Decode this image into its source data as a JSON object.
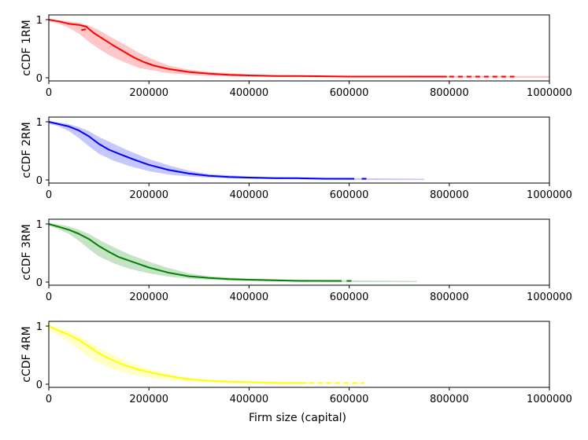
{
  "chart_data": {
    "type": "line",
    "xlabel": "Firm size (capital)",
    "xlim": [
      0,
      1000000
    ],
    "ylim": [
      0,
      1
    ],
    "xticks": [
      "0",
      "200000",
      "400000",
      "600000",
      "800000",
      "1000000"
    ],
    "yticks": [
      "0",
      "1"
    ],
    "panels": [
      {
        "ylabel": "cCDF 1RM",
        "color": "#ff0000",
        "solid_points": [
          [
            0,
            1.0
          ],
          [
            20000,
            0.97
          ],
          [
            40000,
            0.93
          ],
          [
            60000,
            0.91
          ],
          [
            75000,
            0.88
          ],
          [
            80000,
            0.84
          ],
          [
            90000,
            0.77
          ],
          [
            110000,
            0.66
          ],
          [
            130000,
            0.55
          ],
          [
            150000,
            0.45
          ],
          [
            170000,
            0.35
          ],
          [
            190000,
            0.27
          ],
          [
            210000,
            0.21
          ],
          [
            240000,
            0.15
          ],
          [
            280000,
            0.1
          ],
          [
            320000,
            0.07
          ],
          [
            360000,
            0.05
          ],
          [
            400000,
            0.04
          ],
          [
            450000,
            0.03
          ],
          [
            500000,
            0.03
          ],
          [
            600000,
            0.02
          ],
          [
            700000,
            0.02
          ],
          [
            795000,
            0.02
          ]
        ],
        "dashed_segments": [
          [
            [
              65000,
              0.82
            ],
            [
              78000,
              0.84
            ]
          ],
          [
            [
              800000,
              0.02
            ],
            [
              930000,
              0.02
            ]
          ]
        ],
        "band_upper": [
          [
            0,
            1.0
          ],
          [
            20000,
            0.99
          ],
          [
            40000,
            0.97
          ],
          [
            60000,
            0.95
          ],
          [
            80000,
            0.9
          ],
          [
            100000,
            0.82
          ],
          [
            120000,
            0.72
          ],
          [
            150000,
            0.58
          ],
          [
            180000,
            0.43
          ],
          [
            210000,
            0.31
          ],
          [
            240000,
            0.21
          ],
          [
            280000,
            0.14
          ],
          [
            320000,
            0.1
          ],
          [
            400000,
            0.06
          ],
          [
            500000,
            0.04
          ],
          [
            600000,
            0.03
          ],
          [
            800000,
            0.03
          ],
          [
            1000000,
            0.03
          ]
        ],
        "band_lower": [
          [
            1000000,
            0.0
          ],
          [
            800000,
            0.0
          ],
          [
            600000,
            0.01
          ],
          [
            500000,
            0.01
          ],
          [
            400000,
            0.02
          ],
          [
            320000,
            0.03
          ],
          [
            280000,
            0.05
          ],
          [
            240000,
            0.08
          ],
          [
            210000,
            0.12
          ],
          [
            180000,
            0.17
          ],
          [
            150000,
            0.27
          ],
          [
            120000,
            0.39
          ],
          [
            100000,
            0.5
          ],
          [
            80000,
            0.62
          ],
          [
            60000,
            0.76
          ],
          [
            40000,
            0.86
          ],
          [
            20000,
            0.93
          ],
          [
            0,
            0.97
          ]
        ]
      },
      {
        "ylabel": "cCDF 2RM",
        "color": "#0000ff",
        "solid_points": [
          [
            0,
            1.0
          ],
          [
            20000,
            0.96
          ],
          [
            40000,
            0.92
          ],
          [
            60000,
            0.85
          ],
          [
            80000,
            0.75
          ],
          [
            100000,
            0.62
          ],
          [
            120000,
            0.52
          ],
          [
            140000,
            0.45
          ],
          [
            170000,
            0.35
          ],
          [
            200000,
            0.26
          ],
          [
            240000,
            0.17
          ],
          [
            280000,
            0.11
          ],
          [
            320000,
            0.07
          ],
          [
            360000,
            0.05
          ],
          [
            400000,
            0.04
          ],
          [
            450000,
            0.03
          ],
          [
            500000,
            0.03
          ],
          [
            550000,
            0.02
          ],
          [
            610000,
            0.02
          ]
        ],
        "dashed_segments": [
          [
            [
              625000,
              0.02
            ],
            [
              635000,
              0.02
            ]
          ]
        ],
        "band_upper": [
          [
            0,
            1.0
          ],
          [
            20000,
            0.99
          ],
          [
            40000,
            0.96
          ],
          [
            60000,
            0.91
          ],
          [
            80000,
            0.84
          ],
          [
            100000,
            0.74
          ],
          [
            130000,
            0.62
          ],
          [
            160000,
            0.5
          ],
          [
            200000,
            0.36
          ],
          [
            240000,
            0.25
          ],
          [
            280000,
            0.16
          ],
          [
            320000,
            0.1
          ],
          [
            400000,
            0.06
          ],
          [
            500000,
            0.04
          ],
          [
            600000,
            0.03
          ],
          [
            750000,
            0.02
          ]
        ],
        "band_lower": [
          [
            750000,
            0.0
          ],
          [
            600000,
            0.0
          ],
          [
            500000,
            0.01
          ],
          [
            400000,
            0.02
          ],
          [
            320000,
            0.04
          ],
          [
            280000,
            0.06
          ],
          [
            240000,
            0.09
          ],
          [
            200000,
            0.15
          ],
          [
            160000,
            0.24
          ],
          [
            130000,
            0.33
          ],
          [
            100000,
            0.45
          ],
          [
            80000,
            0.58
          ],
          [
            60000,
            0.72
          ],
          [
            40000,
            0.84
          ],
          [
            20000,
            0.92
          ],
          [
            0,
            0.97
          ]
        ]
      },
      {
        "ylabel": "cCDF 3RM",
        "color": "#008000",
        "solid_points": [
          [
            0,
            1.0
          ],
          [
            20000,
            0.95
          ],
          [
            40000,
            0.9
          ],
          [
            60000,
            0.83
          ],
          [
            80000,
            0.74
          ],
          [
            100000,
            0.62
          ],
          [
            120000,
            0.52
          ],
          [
            140000,
            0.43
          ],
          [
            170000,
            0.34
          ],
          [
            200000,
            0.25
          ],
          [
            240000,
            0.16
          ],
          [
            280000,
            0.1
          ],
          [
            320000,
            0.07
          ],
          [
            360000,
            0.05
          ],
          [
            400000,
            0.04
          ],
          [
            450000,
            0.03
          ],
          [
            500000,
            0.02
          ],
          [
            585000,
            0.02
          ]
        ],
        "dashed_segments": [
          [
            [
              595000,
              0.02
            ],
            [
              610000,
              0.02
            ]
          ]
        ],
        "band_upper": [
          [
            0,
            1.0
          ],
          [
            20000,
            0.99
          ],
          [
            40000,
            0.96
          ],
          [
            60000,
            0.9
          ],
          [
            80000,
            0.83
          ],
          [
            100000,
            0.73
          ],
          [
            130000,
            0.6
          ],
          [
            160000,
            0.48
          ],
          [
            200000,
            0.35
          ],
          [
            240000,
            0.24
          ],
          [
            280000,
            0.15
          ],
          [
            320000,
            0.1
          ],
          [
            400000,
            0.06
          ],
          [
            500000,
            0.04
          ],
          [
            600000,
            0.03
          ],
          [
            735000,
            0.02
          ]
        ],
        "band_lower": [
          [
            735000,
            0.0
          ],
          [
            600000,
            0.0
          ],
          [
            500000,
            0.01
          ],
          [
            400000,
            0.02
          ],
          [
            320000,
            0.04
          ],
          [
            280000,
            0.06
          ],
          [
            240000,
            0.09
          ],
          [
            200000,
            0.15
          ],
          [
            160000,
            0.23
          ],
          [
            130000,
            0.32
          ],
          [
            100000,
            0.44
          ],
          [
            80000,
            0.57
          ],
          [
            60000,
            0.71
          ],
          [
            40000,
            0.83
          ],
          [
            20000,
            0.91
          ],
          [
            0,
            0.97
          ]
        ]
      },
      {
        "ylabel": "cCDF 4RM",
        "color": "#ffff00",
        "solid_points": [
          [
            0,
            1.0
          ],
          [
            20000,
            0.92
          ],
          [
            40000,
            0.85
          ],
          [
            60000,
            0.76
          ],
          [
            80000,
            0.65
          ],
          [
            100000,
            0.53
          ],
          [
            120000,
            0.44
          ],
          [
            150000,
            0.33
          ],
          [
            180000,
            0.25
          ],
          [
            220000,
            0.17
          ],
          [
            260000,
            0.11
          ],
          [
            300000,
            0.07
          ],
          [
            340000,
            0.05
          ],
          [
            380000,
            0.04
          ],
          [
            420000,
            0.03
          ],
          [
            460000,
            0.02
          ],
          [
            515000,
            0.02
          ]
        ],
        "dashed_segments": [
          [
            [
              520000,
              0.02
            ],
            [
              630000,
              0.02
            ]
          ]
        ],
        "band_upper": [
          [
            0,
            1.0
          ],
          [
            20000,
            0.97
          ],
          [
            40000,
            0.91
          ],
          [
            60000,
            0.83
          ],
          [
            80000,
            0.73
          ],
          [
            100000,
            0.62
          ],
          [
            130000,
            0.5
          ],
          [
            160000,
            0.38
          ],
          [
            200000,
            0.26
          ],
          [
            240000,
            0.17
          ],
          [
            280000,
            0.11
          ],
          [
            320000,
            0.07
          ],
          [
            400000,
            0.05
          ],
          [
            500000,
            0.03
          ],
          [
            630000,
            0.02
          ]
        ],
        "band_lower": [
          [
            630000,
            0.0
          ],
          [
            500000,
            0.01
          ],
          [
            400000,
            0.02
          ],
          [
            320000,
            0.03
          ],
          [
            280000,
            0.05
          ],
          [
            240000,
            0.07
          ],
          [
            200000,
            0.11
          ],
          [
            160000,
            0.18
          ],
          [
            130000,
            0.25
          ],
          [
            100000,
            0.36
          ],
          [
            80000,
            0.47
          ],
          [
            60000,
            0.59
          ],
          [
            40000,
            0.72
          ],
          [
            20000,
            0.84
          ],
          [
            0,
            0.94
          ]
        ]
      }
    ]
  }
}
